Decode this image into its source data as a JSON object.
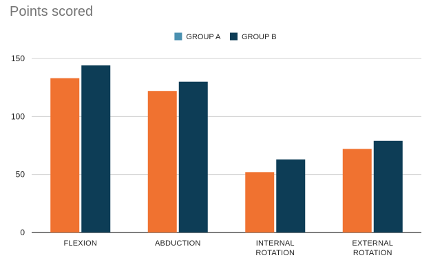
{
  "chart_data": {
    "type": "bar",
    "title": "Points scored",
    "xlabel": "",
    "ylabel": "",
    "ylim": [
      0,
      150
    ],
    "yticks": [
      0,
      50,
      100,
      150
    ],
    "grid": true,
    "legend_position": "top",
    "categories": [
      [
        "FLEXION"
      ],
      [
        "ABDUCTION"
      ],
      [
        "INTERNAL",
        "ROTATION"
      ],
      [
        "EXTERNAL",
        "ROTATION"
      ]
    ],
    "series": [
      {
        "name": "GROUP A",
        "legend_color": "#4a90b0",
        "bar_color": "#f07230",
        "values": [
          133,
          122,
          52,
          72
        ]
      },
      {
        "name": "GROUP B",
        "legend_color": "#0d3d56",
        "bar_color": "#0d3d56",
        "values": [
          144,
          130,
          63,
          79
        ]
      }
    ]
  }
}
